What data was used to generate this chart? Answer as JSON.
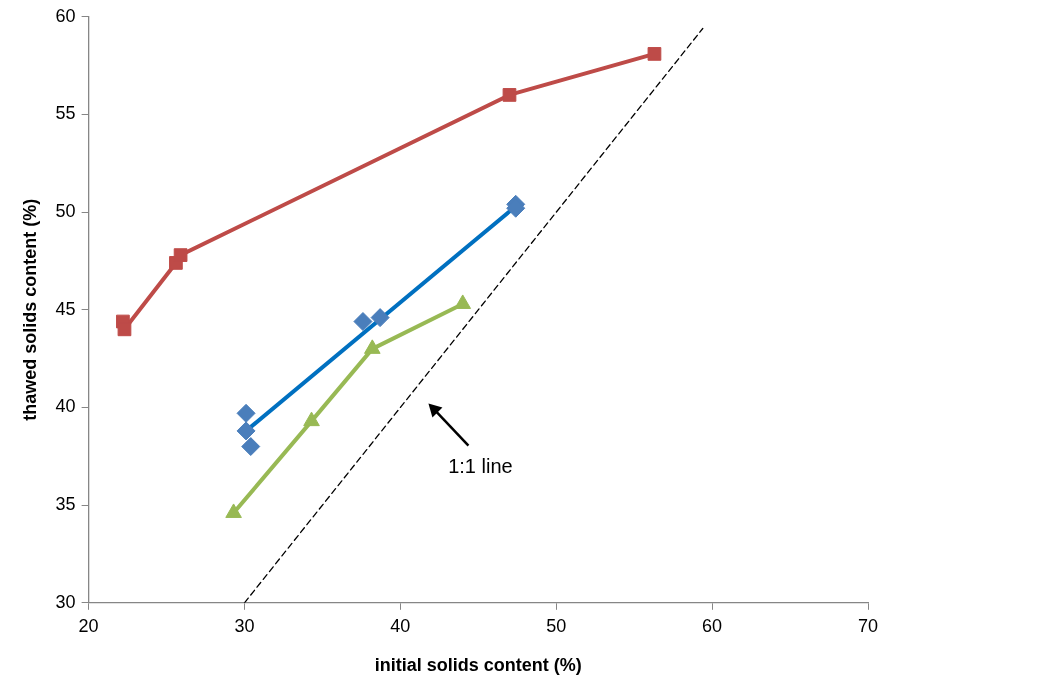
{
  "chart_data": {
    "type": "scatter",
    "xlabel": "initial solids content (%)",
    "ylabel": "thawed solids content (%)",
    "xlim": [
      20,
      70
    ],
    "xticks": [
      20,
      30,
      40,
      50,
      60,
      70
    ],
    "ylim": [
      30,
      60
    ],
    "yticks": [
      30,
      35,
      40,
      45,
      50,
      55,
      60
    ],
    "grid": false,
    "legend": false,
    "series": [
      {
        "type": "scatter",
        "color": "#4a7ebb",
        "marker": "diamond",
        "x": [
          30.1,
          30.1,
          30.4,
          37.6,
          38.7,
          47.4,
          47.4
        ],
        "values": [
          39.7,
          38.8,
          38.0,
          44.4,
          44.6,
          50.4,
          50.2
        ]
      },
      {
        "type": "line",
        "color": "#0070c0",
        "marker": "none",
        "line_style": "solid",
        "x": [
          30.1,
          47.4
        ],
        "values": [
          38.8,
          50.3
        ]
      },
      {
        "type": "line",
        "color": "#be4b48",
        "marker": "square",
        "line_style": "solid",
        "x": [
          22.2,
          22.3,
          25.6,
          25.9,
          47.0,
          56.3
        ],
        "values": [
          44.4,
          44.0,
          47.4,
          47.8,
          56.0,
          58.1
        ]
      },
      {
        "type": "line",
        "color": "#98b954",
        "marker": "triangle",
        "line_style": "solid",
        "x": [
          29.3,
          34.3,
          38.2,
          44.0
        ],
        "values": [
          34.6,
          39.3,
          43.0,
          45.3
        ]
      },
      {
        "type": "line",
        "color": "#000000",
        "marker": "none",
        "line_style": "dashed",
        "x": [
          30,
          59.4
        ],
        "values": [
          30,
          59.4
        ]
      }
    ],
    "annotations": [
      "1:1 line"
    ]
  }
}
